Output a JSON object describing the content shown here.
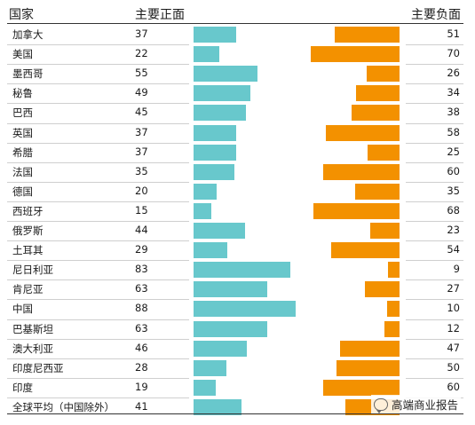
{
  "chart_data": {
    "type": "bar",
    "header": {
      "country": "国家",
      "positive": "主要正面",
      "negative": "主要负面"
    },
    "categories": [
      "加拿大",
      "美国",
      "墨西哥",
      "秘鲁",
      "巴西",
      "英国",
      "希腊",
      "法国",
      "德国",
      "西班牙",
      "俄罗斯",
      "土耳其",
      "尼日利亚",
      "肯尼亚",
      "中国",
      "巴基斯坦",
      "澳大利亚",
      "印度尼西亚",
      "印度",
      "全球平均（中国除外）"
    ],
    "series": [
      {
        "name": "主要正面",
        "color": "#68c8cc",
        "values": [
          37,
          22,
          55,
          49,
          45,
          37,
          37,
          35,
          20,
          15,
          44,
          29,
          83,
          63,
          88,
          63,
          46,
          28,
          19,
          41
        ]
      },
      {
        "name": "主要负面",
        "color": "#f39100",
        "values": [
          51,
          70,
          26,
          34,
          38,
          58,
          25,
          60,
          35,
          68,
          23,
          54,
          9,
          27,
          10,
          12,
          47,
          50,
          60,
          null
        ]
      }
    ],
    "xlim": [
      0,
      100
    ]
  },
  "watermark": {
    "icon": "wechat-icon",
    "text": "高端商业报告"
  }
}
